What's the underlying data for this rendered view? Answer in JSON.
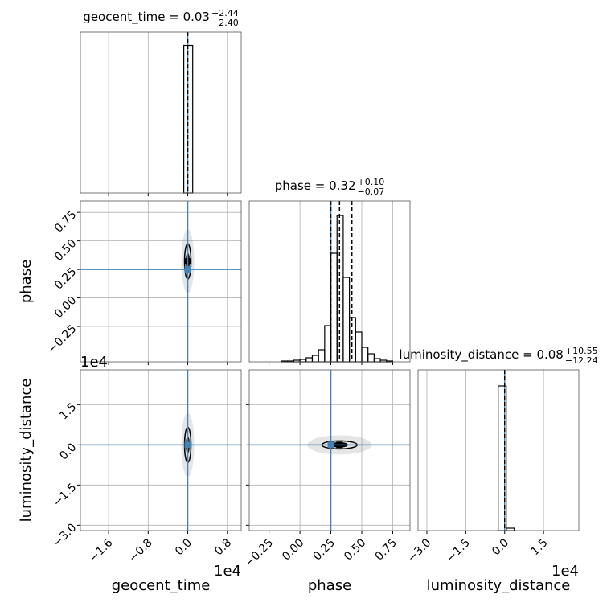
{
  "chart_data": {
    "type": "corner",
    "parameters": [
      {
        "name": "geocent_time",
        "title": "geocent_time = 0.03",
        "upper": "+2.44",
        "lower": "−2.40",
        "offset": "1e4",
        "truth": 0.0,
        "median": 0.0,
        "quantiles": [
          0.0
        ],
        "xlim": [
          -2.17,
          1.08
        ],
        "xticks": [
          {
            "value": -1.6,
            "label": "−1.6"
          },
          {
            "value": -0.8,
            "label": "−0.8"
          },
          {
            "value": 0.0,
            "label": "0.0"
          },
          0.8
        ],
        "bins": [
          -0.08,
          0.1
        ],
        "counts": [
          1
        ],
        "hist_ylim": [
          0,
          1.09
        ]
      },
      {
        "name": "phase",
        "title": "phase = 0.32",
        "upper": "+0.10",
        "lower": "−0.07",
        "truth": 0.25,
        "median": 0.32,
        "quantiles": [
          0.25,
          0.32,
          0.42
        ],
        "xlim": [
          -0.41,
          0.89
        ],
        "ylim": [
          -0.56,
          0.85
        ],
        "xticks": [
          {
            "value": -0.25,
            "label": "−0.25"
          },
          {
            "value": 0.0,
            "label": "0.00"
          },
          0.25,
          {
            "value": 0.5,
            "label": "0.50"
          },
          0.75
        ],
        "yticks": [
          {
            "value": -0.25,
            "label": "−0.25"
          },
          {
            "value": 0.0,
            "label": "0.00"
          },
          0.25,
          {
            "value": 0.5,
            "label": "0.50"
          },
          0.75
        ],
        "bins": [
          -0.15,
          -0.1,
          -0.05,
          0.0,
          0.05,
          0.1,
          0.15,
          0.2,
          0.25,
          0.3,
          0.35,
          0.4,
          0.45,
          0.5,
          0.55,
          0.6,
          0.65,
          0.7,
          0.75
        ],
        "counts": [
          1,
          1,
          2,
          3,
          5,
          8,
          15,
          45,
          135,
          182,
          105,
          55,
          37,
          18,
          10,
          4,
          2,
          1
        ],
        "hist_ylim": [
          0,
          200
        ]
      },
      {
        "name": "luminosity_distance",
        "title": "luminosity_distance = 0.08",
        "upper": "+10.55",
        "lower": "−12.24",
        "offset": "1e4",
        "truth": 0.0,
        "median": 0.0,
        "quantiles": [
          0.0
        ],
        "xlim": [
          -3.34,
          2.86
        ],
        "ylim": [
          -3.2,
          2.8
        ],
        "xticks": [
          {
            "value": -3.0,
            "label": "−3.0"
          },
          {
            "value": -1.5,
            "label": "−1.5"
          },
          {
            "value": 0.0,
            "label": "0.0"
          },
          1.5
        ],
        "yticks": [
          {
            "value": -3.0,
            "label": "−3.0"
          },
          {
            "value": -1.5,
            "label": "−1.5"
          },
          {
            "value": 0.0,
            "label": "0.0"
          },
          1.5
        ],
        "bins": [
          -0.25,
          0.06,
          0.37
        ],
        "counts": [
          180,
          3
        ],
        "hist_ylim": [
          0,
          200
        ]
      }
    ],
    "truth_color": "#4682b4",
    "grid": true
  }
}
